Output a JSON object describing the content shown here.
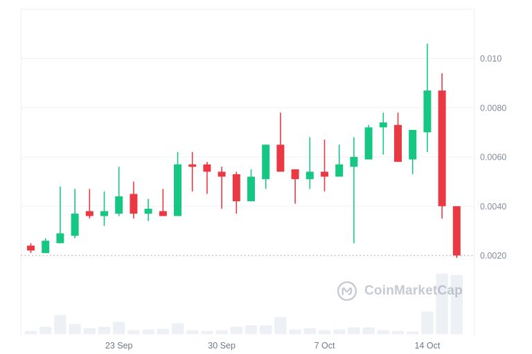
{
  "chart_data": {
    "type": "candlestick",
    "title": "",
    "xlabel": "",
    "ylabel": "",
    "grid": true,
    "legend": null,
    "x_axis": {
      "tick_labels": [
        "23 Sep",
        "30 Sep",
        "7 Oct",
        "14 Oct"
      ],
      "tick_candle_indices": [
        6,
        13,
        20,
        27
      ]
    },
    "y_axis": {
      "side": "right",
      "tick_labels": [
        "0.010",
        "0.0080",
        "0.0060",
        "0.0040",
        "0.0020"
      ],
      "tick_values": [
        0.01,
        0.008,
        0.006,
        0.004,
        0.002
      ],
      "gridline_values": [
        0.012,
        0.01,
        0.008,
        0.006,
        0.004
      ],
      "range": [
        0.0016,
        0.0122
      ]
    },
    "current_price_line": {
      "value": 0.002,
      "style": "dotted"
    },
    "candles": [
      {
        "date": "17 Sep",
        "open": 0.0024,
        "high": 0.0025,
        "low": 0.0021,
        "close": 0.0022,
        "volume_rel": 5
      },
      {
        "date": "18 Sep",
        "open": 0.0021,
        "high": 0.0027,
        "low": 0.0021,
        "close": 0.0026,
        "volume_rel": 11
      },
      {
        "date": "19 Sep",
        "open": 0.0025,
        "high": 0.0048,
        "low": 0.0025,
        "close": 0.0029,
        "volume_rel": 28
      },
      {
        "date": "20 Sep",
        "open": 0.0028,
        "high": 0.0047,
        "low": 0.0027,
        "close": 0.0037,
        "volume_rel": 15
      },
      {
        "date": "21 Sep",
        "open": 0.0038,
        "high": 0.0047,
        "low": 0.0035,
        "close": 0.0036,
        "volume_rel": 9
      },
      {
        "date": "22 Sep",
        "open": 0.0036,
        "high": 0.0046,
        "low": 0.0032,
        "close": 0.0038,
        "volume_rel": 11
      },
      {
        "date": "23 Sep",
        "open": 0.0037,
        "high": 0.0056,
        "low": 0.0036,
        "close": 0.0044,
        "volume_rel": 18
      },
      {
        "date": "24 Sep",
        "open": 0.0045,
        "high": 0.005,
        "low": 0.0035,
        "close": 0.0037,
        "volume_rel": 6
      },
      {
        "date": "25 Sep",
        "open": 0.0037,
        "high": 0.0043,
        "low": 0.0034,
        "close": 0.0039,
        "volume_rel": 7
      },
      {
        "date": "26 Sep",
        "open": 0.0038,
        "high": 0.0047,
        "low": 0.0036,
        "close": 0.0036,
        "volume_rel": 8
      },
      {
        "date": "27 Sep",
        "open": 0.0036,
        "high": 0.0062,
        "low": 0.0036,
        "close": 0.0057,
        "volume_rel": 16
      },
      {
        "date": "28 Sep",
        "open": 0.0057,
        "high": 0.0062,
        "low": 0.0046,
        "close": 0.0056,
        "volume_rel": 6
      },
      {
        "date": "29 Sep",
        "open": 0.0057,
        "high": 0.0058,
        "low": 0.0045,
        "close": 0.0054,
        "volume_rel": 5
      },
      {
        "date": "30 Sep",
        "open": 0.0054,
        "high": 0.0056,
        "low": 0.0039,
        "close": 0.0052,
        "volume_rel": 6
      },
      {
        "date": "1 Oct",
        "open": 0.0053,
        "high": 0.0054,
        "low": 0.0037,
        "close": 0.0042,
        "volume_rel": 11
      },
      {
        "date": "2 Oct",
        "open": 0.0042,
        "high": 0.0055,
        "low": 0.0042,
        "close": 0.0052,
        "volume_rel": 13
      },
      {
        "date": "3 Oct",
        "open": 0.0051,
        "high": 0.0065,
        "low": 0.0047,
        "close": 0.0065,
        "volume_rel": 13
      },
      {
        "date": "4 Oct",
        "open": 0.0065,
        "high": 0.0078,
        "low": 0.0054,
        "close": 0.0054,
        "volume_rel": 25
      },
      {
        "date": "5 Oct",
        "open": 0.0055,
        "high": 0.0055,
        "low": 0.0041,
        "close": 0.0051,
        "volume_rel": 7
      },
      {
        "date": "6 Oct",
        "open": 0.0051,
        "high": 0.0068,
        "low": 0.0047,
        "close": 0.0054,
        "volume_rel": 9
      },
      {
        "date": "7 Oct",
        "open": 0.0054,
        "high": 0.0067,
        "low": 0.0046,
        "close": 0.0052,
        "volume_rel": 6
      },
      {
        "date": "8 Oct",
        "open": 0.0052,
        "high": 0.0065,
        "low": 0.0052,
        "close": 0.0057,
        "volume_rel": 7
      },
      {
        "date": "9 Oct",
        "open": 0.0056,
        "high": 0.0068,
        "low": 0.0025,
        "close": 0.006,
        "volume_rel": 10
      },
      {
        "date": "10 Oct",
        "open": 0.0059,
        "high": 0.0073,
        "low": 0.0059,
        "close": 0.0072,
        "volume_rel": 10
      },
      {
        "date": "11 Oct",
        "open": 0.0072,
        "high": 0.0078,
        "low": 0.0061,
        "close": 0.0074,
        "volume_rel": 6
      },
      {
        "date": "12 Oct",
        "open": 0.0073,
        "high": 0.0078,
        "low": 0.0058,
        "close": 0.0058,
        "volume_rel": 5
      },
      {
        "date": "13 Oct",
        "open": 0.0059,
        "high": 0.0071,
        "low": 0.0053,
        "close": 0.0071,
        "volume_rel": 4
      },
      {
        "date": "14 Oct",
        "open": 0.007,
        "high": 0.0106,
        "low": 0.0062,
        "close": 0.0087,
        "volume_rel": 33
      },
      {
        "date": "15 Oct",
        "open": 0.0087,
        "high": 0.0094,
        "low": 0.0035,
        "close": 0.004,
        "volume_rel": 88
      },
      {
        "date": "16 Oct",
        "open": 0.004,
        "high": 0.004,
        "low": 0.0019,
        "close": 0.002,
        "volume_rel": 86
      }
    ]
  },
  "watermark": {
    "text": "CoinMarketCap"
  },
  "colors": {
    "up_green": "#16c784",
    "down_red": "#ea3943",
    "gridline": "#eff2f5",
    "pane_border": "#eceff2",
    "y_axis_label": "#838b9b",
    "x_axis_label": "#6e7888",
    "volume_bar": "#edf0f4",
    "dotted_line": "#b3bac4",
    "watermark_gray": "#9aa3b1",
    "background": "#ffffff"
  }
}
